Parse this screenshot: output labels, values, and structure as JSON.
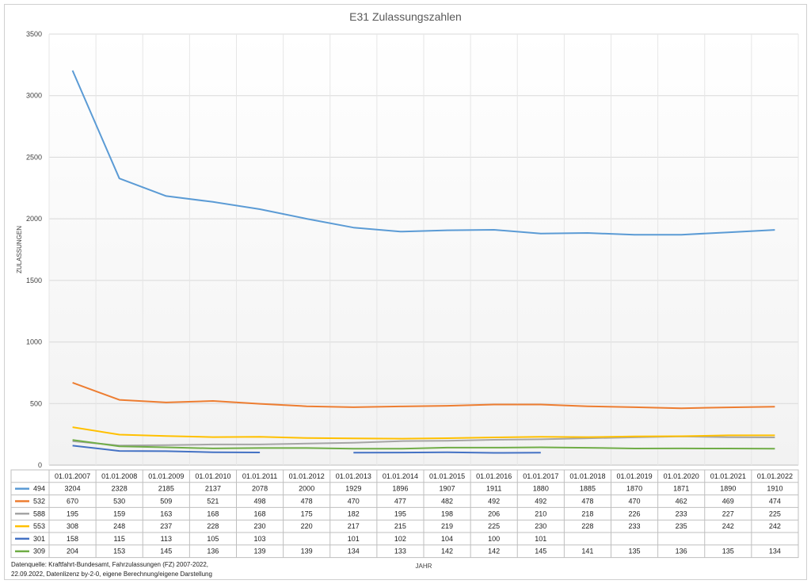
{
  "chart_data": {
    "type": "line",
    "title": "E31 Zulassungszahlen",
    "ylabel": "ZULASSUNGEN",
    "xlabel": "JAHR",
    "ylim": [
      0,
      3500
    ],
    "yticks": [
      "0",
      "500",
      "1000",
      "1500",
      "2000",
      "2500",
      "3000",
      "3500"
    ],
    "grid": true,
    "legend": "data-table",
    "categories": [
      "01.01.2007",
      "01.01.2008",
      "01.01.2009",
      "01.01.2010",
      "01.01.2011",
      "01.01.2012",
      "01.01.2013",
      "01.01.2014",
      "01.01.2015",
      "01.01.2016",
      "01.01.2017",
      "01.01.2018",
      "01.01.2019",
      "01.01.2020",
      "01.01.2021",
      "01.01.2022"
    ],
    "series": [
      {
        "name": "494",
        "color": "#5B9BD5",
        "values": [
          3204,
          2328,
          2185,
          2137,
          2078,
          2000,
          1929,
          1896,
          1907,
          1911,
          1880,
          1885,
          1870,
          1871,
          1890,
          1910
        ]
      },
      {
        "name": "532",
        "color": "#ED7D31",
        "values": [
          670,
          530,
          509,
          521,
          498,
          478,
          470,
          477,
          482,
          492,
          492,
          478,
          470,
          462,
          469,
          474
        ]
      },
      {
        "name": "588",
        "color": "#A5A5A5",
        "values": [
          195,
          159,
          163,
          168,
          168,
          175,
          182,
          195,
          198,
          206,
          210,
          218,
          226,
          233,
          227,
          225
        ]
      },
      {
        "name": "553",
        "color": "#FFC000",
        "values": [
          308,
          248,
          237,
          228,
          230,
          220,
          217,
          215,
          219,
          225,
          230,
          228,
          233,
          235,
          242,
          242
        ]
      },
      {
        "name": "301",
        "color": "#4472C4",
        "values": [
          158,
          115,
          113,
          105,
          103,
          null,
          101,
          102,
          104,
          100,
          101,
          null,
          null,
          null,
          null,
          null
        ]
      },
      {
        "name": "309",
        "color": "#70AD47",
        "values": [
          204,
          153,
          145,
          136,
          139,
          139,
          134,
          133,
          142,
          142,
          145,
          141,
          135,
          136,
          135,
          134
        ]
      }
    ]
  },
  "source_line1": "Datenquelle: Kraftfahrt-Bundesamt, Fahrzulassungen (FZ) 2007-2022,",
  "source_line2": "22.09.2022, Datenlizenz by-2-0, eigene Berechnung/eigene Darstellung"
}
